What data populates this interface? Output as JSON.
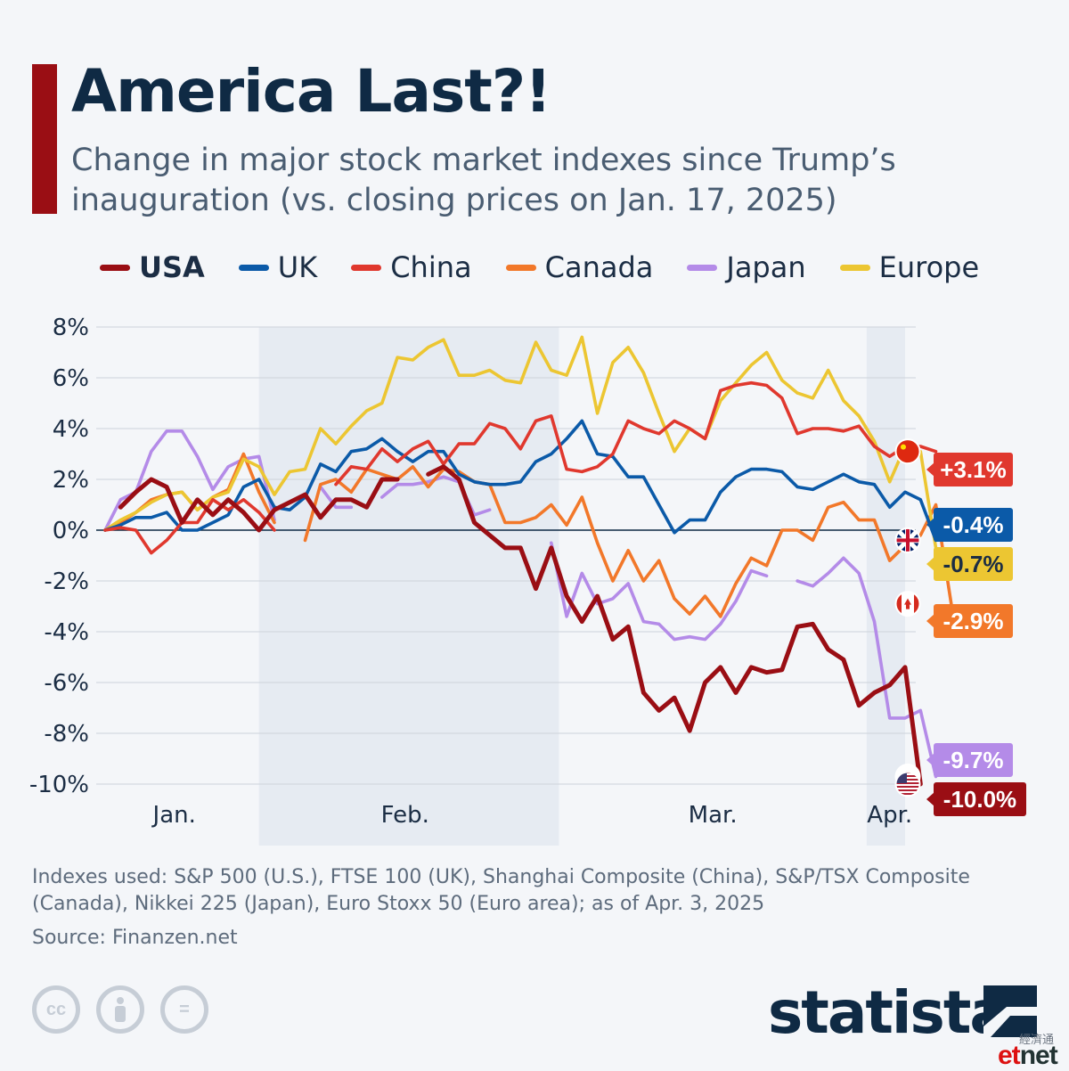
{
  "title": "America Last?!",
  "subtitle": "Change in major stock market indexes since Trump’s inauguration (vs. closing prices on Jan. 17, 2025)",
  "footnote": "Indexes used: S&P 500 (U.S.), FTSE 100 (UK), Shanghai Composite (China), S&P/TSX Composite (Canada), Nikkei 225 (Japan), Euro Stoxx 50 (Euro area); as of Apr. 3, 2025",
  "source": "Source: Finanzen.net",
  "logo": "statista",
  "watermark": {
    "cn": "經濟通",
    "et": "et",
    "net": "net"
  },
  "license_icons": [
    "cc-icon",
    "by-icon",
    "nd-icon"
  ],
  "license_glyphs": [
    "cc",
    "",
    "="
  ],
  "colors": {
    "USA": "#9a0e14",
    "UK": "#0b5aa8",
    "China": "#e0382e",
    "Canada": "#f2782a",
    "Japan": "#b48be8",
    "Europe": "#ecc632",
    "shade": "#e6ebf2",
    "grid": "#cdd3da",
    "zero": "#0f2a44"
  },
  "chart_data": {
    "type": "line",
    "ylim": [
      -11,
      8
    ],
    "yticks": [
      8,
      6,
      4,
      2,
      0,
      -2,
      -4,
      -6,
      -8,
      -10
    ],
    "ytick_labels": [
      "8%",
      "6%",
      "4%",
      "2%",
      "0%",
      "-2%",
      "-4%",
      "-6%",
      "-8%",
      "-10%"
    ],
    "xmax": 52,
    "x_ticks": [
      {
        "x": 4.5,
        "label": "Jan."
      },
      {
        "x": 19.5,
        "label": "Feb."
      },
      {
        "x": 39.5,
        "label": "Mar."
      },
      {
        "x": 51,
        "label": "Apr."
      }
    ],
    "shaded": [
      [
        10,
        29.5
      ],
      [
        49.5,
        52
      ]
    ],
    "series": [
      {
        "name": "Japan",
        "end_label": "-9.7%",
        "end_value": -9.7,
        "flag": "japan-flag-icon",
        "values": [
          0,
          1.2,
          1.5,
          3.1,
          3.9,
          3.9,
          2.9,
          1.6,
          2.5,
          2.8,
          2.9,
          0.4,
          null,
          null,
          1.7,
          0.9,
          0.9,
          null,
          1.3,
          1.8,
          1.8,
          1.9,
          2.1,
          1.9,
          0.6,
          0.8,
          null,
          null,
          null,
          -0.5,
          -3.4,
          -1.7,
          -2.9,
          -2.7,
          -2.1,
          -3.6,
          -3.7,
          -4.3,
          -4.2,
          -4.3,
          -3.7,
          -2.8,
          -1.6,
          -1.8,
          null,
          -2.0,
          -2.2,
          -1.7,
          -1.1,
          -1.7,
          -3.6,
          -7.4,
          -7.4,
          -7.1,
          -9.7
        ]
      },
      {
        "name": "Canada",
        "end_label": "-2.9%",
        "end_value": -2.9,
        "flag": "canada-flag-icon",
        "values": [
          0,
          0.3,
          0.7,
          1.2,
          1.4,
          1.5,
          0.8,
          1.3,
          1.6,
          3.0,
          1.5,
          0.3,
          null,
          -0.4,
          1.8,
          2.0,
          1.5,
          2.4,
          2.2,
          2.0,
          2.5,
          1.7,
          2.4,
          2.3,
          1.9,
          1.8,
          0.3,
          0.3,
          0.5,
          1.0,
          0.2,
          1.3,
          -0.5,
          -2.0,
          -0.8,
          -2.0,
          -1.2,
          -2.7,
          -3.3,
          -2.6,
          -3.4,
          -2.1,
          -1.1,
          -1.4,
          0.0,
          0.0,
          -0.4,
          0.9,
          1.1,
          0.4,
          0.4,
          -1.2,
          -0.6,
          -0.2,
          1.0,
          -2.9
        ]
      },
      {
        "name": "Europe",
        "end_label": "-0.7%",
        "end_value": -0.7,
        "flag": "",
        "values": [
          0,
          0.4,
          0.7,
          1.1,
          1.4,
          1.5,
          0.8,
          1.3,
          1.5,
          2.8,
          2.5,
          1.4,
          2.3,
          2.4,
          4.0,
          3.4,
          4.1,
          4.7,
          5.0,
          6.8,
          6.7,
          7.2,
          7.5,
          6.1,
          6.1,
          6.3,
          5.9,
          5.8,
          7.4,
          6.3,
          6.1,
          7.6,
          4.6,
          6.6,
          7.2,
          6.2,
          4.6,
          3.1,
          4.0,
          3.6,
          5.1,
          5.8,
          6.5,
          7.0,
          5.9,
          5.4,
          5.2,
          6.3,
          5.1,
          4.5,
          3.5,
          1.9,
          3.3,
          3.1,
          -0.7
        ]
      },
      {
        "name": "UK",
        "end_label": "-0.4%",
        "end_value": -0.4,
        "flag": "uk-flag-icon",
        "values": [
          0,
          0.2,
          0.5,
          0.5,
          0.7,
          0.0,
          0.0,
          0.3,
          0.6,
          1.7,
          2.0,
          0.9,
          0.8,
          1.3,
          2.6,
          2.3,
          3.1,
          3.2,
          3.6,
          3.1,
          2.7,
          3.1,
          3.1,
          2.2,
          1.9,
          1.8,
          1.8,
          1.9,
          2.7,
          3.0,
          3.6,
          4.3,
          3.0,
          2.9,
          2.1,
          2.1,
          1.0,
          -0.1,
          0.4,
          0.4,
          1.5,
          2.1,
          2.4,
          2.4,
          2.3,
          1.7,
          1.6,
          1.9,
          2.2,
          1.9,
          1.8,
          0.9,
          1.5,
          1.2,
          -0.4
        ]
      },
      {
        "name": "China",
        "end_label": "+3.1%",
        "end_value": 3.1,
        "flag": "china-flag-icon",
        "values": [
          0,
          0.1,
          0.0,
          -0.9,
          -0.4,
          0.3,
          0.3,
          1.2,
          0.8,
          1.2,
          0.7,
          0.0,
          null,
          null,
          null,
          1.8,
          2.5,
          2.4,
          3.2,
          2.7,
          3.2,
          3.5,
          2.6,
          3.4,
          3.4,
          4.2,
          4.0,
          3.2,
          4.3,
          4.5,
          2.4,
          2.3,
          2.5,
          3.0,
          4.3,
          4.0,
          3.8,
          4.3,
          4.0,
          3.6,
          5.5,
          5.7,
          5.8,
          5.7,
          5.2,
          3.8,
          4.0,
          4.0,
          3.9,
          4.1,
          3.3,
          2.9,
          3.3,
          3.3,
          3.1
        ]
      },
      {
        "name": "USA",
        "end_label": "-10.0%",
        "end_value": -10.0,
        "flag": "usa-flag-icon",
        "values": [
          null,
          0.9,
          1.5,
          2.0,
          1.7,
          0.3,
          1.2,
          0.6,
          1.2,
          0.7,
          0.0,
          0.8,
          1.1,
          1.4,
          0.5,
          1.2,
          1.2,
          0.9,
          2.0,
          2.0,
          null,
          2.2,
          2.5,
          2.0,
          0.3,
          -0.2,
          -0.7,
          -0.7,
          -2.3,
          -0.7,
          -2.6,
          -3.6,
          -2.6,
          -4.3,
          -3.8,
          -6.4,
          -7.1,
          -6.6,
          -7.9,
          -6.0,
          -5.4,
          -6.4,
          -5.4,
          -5.6,
          -5.5,
          -3.8,
          -3.7,
          -4.7,
          -5.1,
          -6.9,
          -6.4,
          -6.1,
          -5.4,
          -10.0
        ]
      }
    ]
  },
  "legend": [
    {
      "name": "USA",
      "bold": true
    },
    {
      "name": "UK",
      "bold": false
    },
    {
      "name": "China",
      "bold": false
    },
    {
      "name": "Canada",
      "bold": false
    },
    {
      "name": "Japan",
      "bold": false
    },
    {
      "name": "Europe",
      "bold": false
    }
  ]
}
